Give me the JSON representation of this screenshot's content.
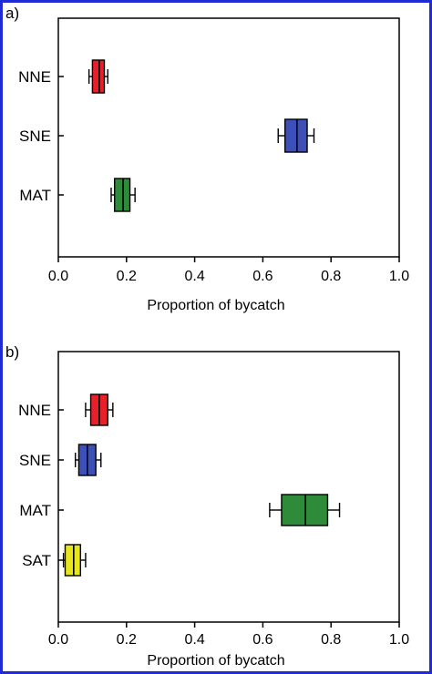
{
  "chart_data": [
    {
      "panel_label": "a)",
      "type": "boxplot",
      "orientation": "horizontal",
      "xlabel": "Proportion of bycatch",
      "xlim": [
        0,
        1.0
      ],
      "xticks": [
        "0.0",
        "0.2",
        "0.4",
        "0.6",
        "0.8",
        "1.0"
      ],
      "grid": false,
      "categories": [
        "NNE",
        "SNE",
        "MAT"
      ],
      "boxes": [
        {
          "category": "NNE",
          "color": "#e8202a",
          "whisker_low": 0.09,
          "q1": 0.1,
          "median": 0.12,
          "q3": 0.135,
          "whisker_high": 0.145
        },
        {
          "category": "SNE",
          "color": "#3d4fb8",
          "whisker_low": 0.645,
          "q1": 0.665,
          "median": 0.7,
          "q3": 0.73,
          "whisker_high": 0.75
        },
        {
          "category": "MAT",
          "color": "#2e8b3a",
          "whisker_low": 0.155,
          "q1": 0.165,
          "median": 0.19,
          "q3": 0.21,
          "whisker_high": 0.225
        }
      ]
    },
    {
      "panel_label": "b)",
      "type": "boxplot",
      "orientation": "horizontal",
      "xlabel": "Proportion of bycatch",
      "xlim": [
        0,
        1.0
      ],
      "xticks": [
        "0.0",
        "0.2",
        "0.4",
        "0.6",
        "0.8",
        "1.0"
      ],
      "grid": false,
      "categories": [
        "NNE",
        "SNE",
        "MAT",
        "SAT"
      ],
      "boxes": [
        {
          "category": "NNE",
          "color": "#e8202a",
          "whisker_low": 0.08,
          "q1": 0.095,
          "median": 0.12,
          "q3": 0.145,
          "whisker_high": 0.16
        },
        {
          "category": "SNE",
          "color": "#3d4fb8",
          "whisker_low": 0.05,
          "q1": 0.06,
          "median": 0.085,
          "q3": 0.11,
          "whisker_high": 0.125
        },
        {
          "category": "MAT",
          "color": "#2e8b3a",
          "whisker_low": 0.62,
          "q1": 0.655,
          "median": 0.725,
          "q3": 0.79,
          "whisker_high": 0.825
        },
        {
          "category": "SAT",
          "color": "#e6e61a",
          "whisker_low": 0.015,
          "q1": 0.02,
          "median": 0.045,
          "q3": 0.065,
          "whisker_high": 0.08
        }
      ]
    }
  ]
}
